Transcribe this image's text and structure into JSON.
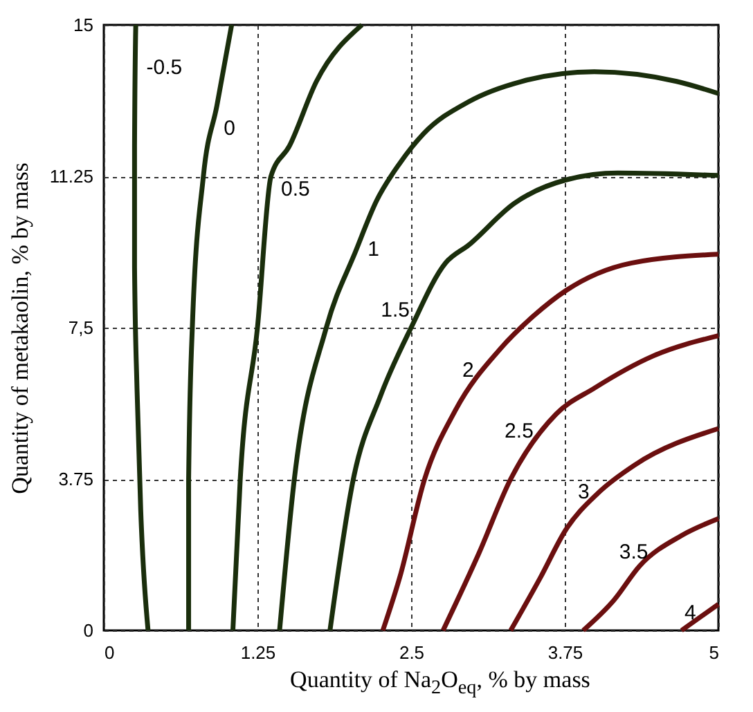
{
  "chart_data": {
    "type": "line",
    "xlabel": "Quantity of Na$_{2}$O$_{eq}$, % by mass",
    "ylabel": "Quantity of metakaolin, % by mass",
    "xlim": [
      0,
      5
    ],
    "ylim": [
      0,
      15
    ],
    "xticks": [
      0,
      1.25,
      2.5,
      3.75,
      5
    ],
    "yticks": [
      0,
      3.75,
      {
        "value": 7.5,
        "label": "7,5"
      },
      11.25,
      15
    ],
    "grid": true,
    "legend": false,
    "line_style": "solid",
    "marker": "none",
    "series": [
      {
        "name": "-0.5",
        "color": "#1a2e0c",
        "x": [
          0.36,
          0.3,
          0.27,
          0.25,
          0.25,
          0.26
        ],
        "values": [
          0,
          3,
          6,
          9,
          12,
          15
        ]
      },
      {
        "name": "0",
        "color": "#1a2e0c",
        "x": [
          0.69,
          0.69,
          0.72,
          0.81,
          0.92,
          1.04
        ],
        "values": [
          0,
          3.75,
          7.5,
          11.25,
          13,
          15
        ]
      },
      {
        "name": "0.5",
        "color": "#1a2e0c",
        "x": [
          1.05,
          1.11,
          1.25,
          1.36,
          1.51,
          1.73,
          2.1
        ],
        "values": [
          0,
          3.75,
          7.5,
          11.25,
          12,
          13.6,
          15
        ]
      },
      {
        "name": "1",
        "color": "#1a2e0c",
        "x": [
          1.43,
          1.55,
          1.81,
          2.05,
          2.22,
          2.41,
          2.6,
          2.97,
          3.4,
          3.99,
          4.66,
          5
        ],
        "values": [
          0,
          3.75,
          7.5,
          9.4,
          10.65,
          11.58,
          12.3,
          13.1,
          13.6,
          13.84,
          13.6,
          13.3
        ]
      },
      {
        "name": "1.5",
        "color": "#1a2e0c",
        "x": [
          1.84,
          2.03,
          2.25,
          2.5,
          2.78,
          2.97,
          3.34,
          3.76,
          4.18,
          5
        ],
        "values": [
          0,
          3.75,
          5.8,
          7.5,
          9.1,
          9.55,
          10.58,
          11.16,
          11.33,
          11.27
        ]
      },
      {
        "name": "2",
        "color": "#6b0f0f",
        "x": [
          2.27,
          2.41,
          2.61,
          2.86,
          3.23,
          3.5,
          3.76,
          4.29,
          5
        ],
        "values": [
          0,
          1.34,
          3.75,
          5.45,
          6.99,
          7.8,
          8.42,
          9.1,
          9.32
        ]
      },
      {
        "name": "2.5",
        "color": "#6b0f0f",
        "x": [
          2.76,
          3.05,
          3.31,
          3.68,
          3.99,
          4.47,
          5
        ],
        "values": [
          0,
          1.9,
          3.75,
          5.36,
          6.0,
          6.8,
          7.3
        ]
      },
      {
        "name": "3",
        "color": "#6b0f0f",
        "x": [
          3.31,
          3.55,
          3.76,
          4.02,
          4.32,
          5
        ],
        "values": [
          0,
          1.3,
          2.5,
          3.4,
          4.1,
          5.0
        ]
      },
      {
        "name": "3.5",
        "color": "#6b0f0f",
        "x": [
          3.9,
          4.15,
          4.36,
          4.7,
          5
        ],
        "values": [
          0,
          0.75,
          1.6,
          2.35,
          2.77
        ]
      },
      {
        "name": "4",
        "color": "#6b0f0f",
        "x": [
          4.7,
          5
        ],
        "values": [
          0,
          0.65
        ]
      }
    ]
  }
}
